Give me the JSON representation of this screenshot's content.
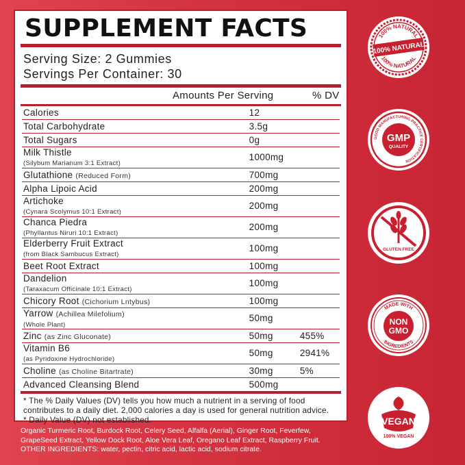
{
  "panel": {
    "title": "SUPPLEMENT FACTS",
    "serving_size": "Serving Size: 2 Gummies",
    "servings_per_container": "Servings Per Container: 30",
    "amount_header": "Amounts Per Serving",
    "dv_header": "% DV"
  },
  "rows": [
    {
      "name": "Calories",
      "amount": "12",
      "dv": ""
    },
    {
      "name": "Total Carbohydrate",
      "amount": "3.5g",
      "dv": ""
    },
    {
      "name": "Total Sugars",
      "amount": "0g",
      "dv": ""
    },
    {
      "name": "Milk Thistle",
      "sub": "(Silybum Marianum 3:1 Extract)",
      "amount": "1000mg",
      "dv": ""
    },
    {
      "name": "Glutathione",
      "inline": "(Reduced Form)",
      "amount": "700mg",
      "dv": ""
    },
    {
      "name": "Alpha Lipoic Acid",
      "amount": "200mg",
      "dv": ""
    },
    {
      "name": "Artichoke",
      "sub": "(Cynara Scolymus 10:1 Extract)",
      "amount": "200mg",
      "dv": ""
    },
    {
      "name": "Chanca Piedra",
      "sub": "(Phyllantus Niruri 10:1 Extract)",
      "amount": "200mg",
      "dv": ""
    },
    {
      "name": "Elderberry Fruit Extract",
      "sub": "(from Black Sambucus Extract)",
      "amount": "100mg",
      "dv": ""
    },
    {
      "name": "Beet Root Extract",
      "amount": "100mg",
      "dv": ""
    },
    {
      "name": "Dandelion",
      "sub": "(Taraxacum Officinale 10:1 Extract)",
      "amount": "100mg",
      "dv": ""
    },
    {
      "name": "Chicory Root",
      "inline": "(Cichorium Lntybus)",
      "amount": "100mg",
      "dv": ""
    },
    {
      "name": "Yarrow",
      "inline": "(Achillea Milefolium)",
      "sub": "(Whole Plant)",
      "amount": "50mg",
      "dv": ""
    },
    {
      "name": "Zinc",
      "inline": "(as Zinc Gluconate)",
      "amount": "50mg",
      "dv": "455%"
    },
    {
      "name": "Vitamin B6",
      "sub": "(as Pyridoxine Hydrochloride)",
      "amount": "50mg",
      "dv": "2941%"
    },
    {
      "name": "Choline",
      "inline": "(as Choline Bitartrate)",
      "amount": "30mg",
      "dv": "5%"
    },
    {
      "name": "Advanced Cleansing Blend",
      "amount": "500mg",
      "dv": ""
    }
  ],
  "footnotes": {
    "line1": "* The % Daily Values (DV) tells you how much a nutrient in a serving of food contributes to a daily diet. 2,000 calories a day is used for general nutrition advice.",
    "line2": "* Daily Value (DV) not established."
  },
  "blend_text": "Organic Turmeric Root, Burdock Root, Celery Seed, Alfalfa (Aerial), Ginger Root, Feverfew, GrapeSeed Extract, Yellow Dock Root, Aloe Vera Leaf, Oregano Leaf Extract, Raspberry Fruit.",
  "other_ingredients": "OTHER INGREDIENTS: water, pectin, citric acid, lactic acid, sodium citrate.",
  "badges": {
    "natural": {
      "arc_top": "100% NATURAL",
      "center": "100% NATURAL",
      "arc_bottom": "100% NATURAL",
      "icon": "natural-seal-icon"
    },
    "gmp": {
      "center": "GMP",
      "sub": "QUALITY",
      "arc": "GOOD MANUFACTURING PRACTICE CERTIFICATION",
      "icon": "gmp-seal-icon"
    },
    "gluten": {
      "label": "GLUTEN FREE",
      "icon": "wheat-crossed-icon"
    },
    "nongmo": {
      "arc_top": "MADE WITH",
      "center1": "NON",
      "center2": "GMO",
      "arc_bottom": "INGREDIENTS",
      "icon": "non-gmo-seal-icon"
    },
    "vegan": {
      "center": "VEGAN",
      "sub": "100% VEGAN",
      "icon": "leaf-icon"
    }
  },
  "colors": {
    "accent": "#b8202c",
    "background": "#d43340",
    "badge_red": "#c8202e"
  }
}
